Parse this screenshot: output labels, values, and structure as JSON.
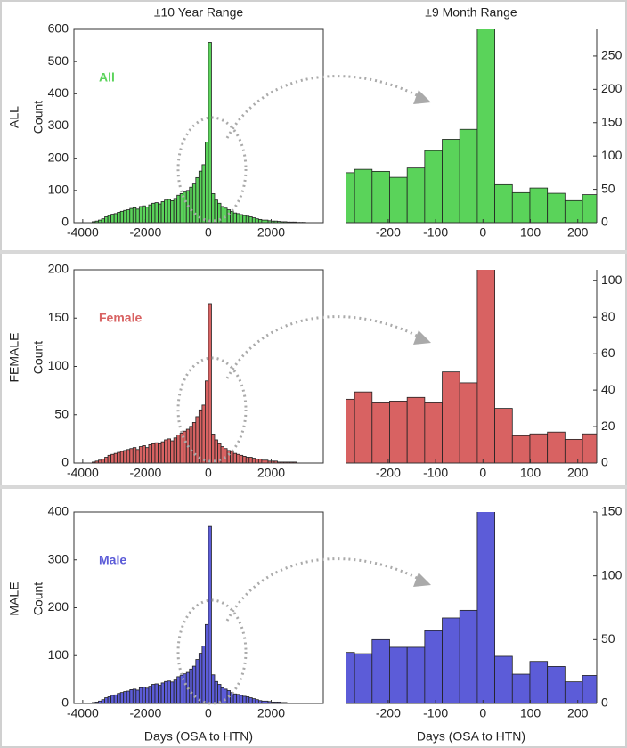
{
  "chart_data": [
    {
      "type": "histogram",
      "title": "±10 Year Range",
      "row_label": "ALL",
      "ylabel": "Count",
      "annotation": "All",
      "color": "#5ad35a",
      "edgecolor": "#222",
      "yaxis_side": "left",
      "bins": [
        -3700,
        -3600,
        -3500,
        -3400,
        -3300,
        -3200,
        -3100,
        -3000,
        -2900,
        -2800,
        -2700,
        -2600,
        -2500,
        -2400,
        -2300,
        -2200,
        -2100,
        -2000,
        -1900,
        -1800,
        -1700,
        -1600,
        -1500,
        -1400,
        -1300,
        -1200,
        -1100,
        -1000,
        -900,
        -800,
        -700,
        -600,
        -500,
        -400,
        -300,
        -200,
        -100,
        0,
        100,
        200,
        300,
        400,
        500,
        600,
        700,
        800,
        900,
        1000,
        1100,
        1200,
        1300,
        1400,
        1500,
        1600,
        1700,
        1800,
        1900,
        2000,
        2100,
        2200,
        2300,
        2400,
        2500,
        2600,
        2700,
        2800,
        2900,
        3000,
        3100,
        3200,
        3300
      ],
      "values": [
        3,
        5,
        8,
        12,
        18,
        22,
        26,
        28,
        32,
        35,
        38,
        40,
        44,
        46,
        42,
        50,
        52,
        48,
        55,
        60,
        62,
        58,
        65,
        70,
        72,
        68,
        75,
        85,
        90,
        95,
        100,
        110,
        120,
        140,
        160,
        180,
        250,
        560,
        90,
        70,
        60,
        50,
        45,
        40,
        35,
        30,
        28,
        25,
        22,
        20,
        18,
        15,
        12,
        10,
        8,
        8,
        6,
        5,
        5,
        4,
        3,
        3,
        2,
        2,
        2,
        1,
        1,
        1,
        0,
        0
      ],
      "xlim": [
        -4280,
        3660
      ],
      "ylim": [
        0,
        600
      ],
      "xticks": [
        -4000,
        -2000,
        0,
        2000
      ],
      "yticks": [
        0,
        100,
        200,
        300,
        400,
        500,
        600
      ]
    },
    {
      "type": "histogram",
      "title": "±9 Month Range",
      "color": "#5ad35a",
      "edgecolor": "#222",
      "yaxis_side": "right",
      "bins": [
        -308,
        -271,
        -234,
        -197,
        -160,
        -123,
        -86,
        -49,
        -12,
        25,
        62,
        99,
        136,
        173,
        210,
        247
      ],
      "values": [
        75,
        80,
        77,
        68,
        82,
        108,
        125,
        140,
        320,
        57,
        45,
        52,
        44,
        33,
        42
      ],
      "xlim": [
        -290,
        240
      ],
      "ylim": [
        0,
        290
      ],
      "xticks": [
        -200,
        -100,
        0,
        100,
        200
      ],
      "yticks": [
        0,
        50,
        100,
        150,
        200,
        250
      ]
    },
    {
      "type": "histogram",
      "row_label": "FEMALE",
      "ylabel": "Count",
      "annotation": "Female",
      "color": "#d86262",
      "edgecolor": "#222",
      "yaxis_side": "left",
      "bins": [
        -3700,
        -3600,
        -3500,
        -3400,
        -3300,
        -3200,
        -3100,
        -3000,
        -2900,
        -2800,
        -2700,
        -2600,
        -2500,
        -2400,
        -2300,
        -2200,
        -2100,
        -2000,
        -1900,
        -1800,
        -1700,
        -1600,
        -1500,
        -1400,
        -1300,
        -1200,
        -1100,
        -1000,
        -900,
        -800,
        -700,
        -600,
        -500,
        -400,
        -300,
        -200,
        -100,
        0,
        100,
        200,
        300,
        400,
        500,
        600,
        700,
        800,
        900,
        1000,
        1100,
        1200,
        1300,
        1400,
        1500,
        1600,
        1700,
        1800,
        1900,
        2000,
        2100,
        2200,
        2300,
        2400,
        2500,
        2600,
        2700,
        2800,
        2900,
        3000,
        3100,
        3200,
        3300
      ],
      "values": [
        1,
        2,
        3,
        4,
        6,
        8,
        9,
        10,
        11,
        12,
        13,
        14,
        15,
        16,
        14,
        17,
        18,
        16,
        19,
        20,
        21,
        20,
        22,
        24,
        25,
        23,
        26,
        29,
        31,
        33,
        35,
        38,
        42,
        48,
        55,
        60,
        85,
        165,
        30,
        24,
        20,
        17,
        15,
        13,
        12,
        10,
        9,
        8,
        7,
        6,
        6,
        5,
        4,
        4,
        3,
        3,
        2,
        2,
        2,
        1,
        1,
        1,
        1,
        1,
        1,
        0,
        0,
        0,
        0,
        0
      ],
      "xlim": [
        -4280,
        3660
      ],
      "ylim": [
        0,
        200
      ],
      "xticks": [
        -4000,
        -2000,
        0,
        2000
      ],
      "yticks": [
        0,
        50,
        100,
        150,
        200
      ]
    },
    {
      "type": "histogram",
      "color": "#d86262",
      "edgecolor": "#222",
      "yaxis_side": "right",
      "bins": [
        -308,
        -271,
        -234,
        -197,
        -160,
        -123,
        -86,
        -49,
        -12,
        25,
        62,
        99,
        136,
        173,
        210,
        247
      ],
      "values": [
        35,
        39,
        33,
        34,
        36,
        33,
        50,
        44,
        120,
        30,
        15,
        16,
        17,
        13,
        16
      ],
      "xlim": [
        -290,
        240
      ],
      "ylim": [
        0,
        106
      ],
      "xticks": [
        -200,
        -100,
        0,
        100,
        200
      ],
      "yticks": [
        0,
        20,
        40,
        60,
        80,
        100
      ]
    },
    {
      "type": "histogram",
      "row_label": "MALE",
      "ylabel": "Count",
      "annotation": "Male",
      "xlabel": "Days (OSA to HTN)",
      "color": "#5c5cd8",
      "edgecolor": "#222",
      "yaxis_side": "left",
      "bins": [
        -3700,
        -3600,
        -3500,
        -3400,
        -3300,
        -3200,
        -3100,
        -3000,
        -2900,
        -2800,
        -2700,
        -2600,
        -2500,
        -2400,
        -2300,
        -2200,
        -2100,
        -2000,
        -1900,
        -1800,
        -1700,
        -1600,
        -1500,
        -1400,
        -1300,
        -1200,
        -1100,
        -1000,
        -900,
        -800,
        -700,
        -600,
        -500,
        -400,
        -300,
        -200,
        -100,
        0,
        100,
        200,
        300,
        400,
        500,
        600,
        700,
        800,
        900,
        1000,
        1100,
        1200,
        1300,
        1400,
        1500,
        1600,
        1700,
        1800,
        1900,
        2000,
        2100,
        2200,
        2300,
        2400,
        2500,
        2600,
        2700,
        2800,
        2900,
        3000,
        3100,
        3200,
        3300
      ],
      "values": [
        2,
        3,
        5,
        8,
        12,
        14,
        17,
        18,
        21,
        23,
        25,
        26,
        29,
        30,
        28,
        33,
        34,
        32,
        36,
        40,
        41,
        38,
        43,
        46,
        47,
        45,
        49,
        56,
        59,
        62,
        65,
        72,
        78,
        92,
        105,
        120,
        165,
        370,
        60,
        46,
        40,
        33,
        30,
        27,
        23,
        20,
        19,
        17,
        15,
        14,
        12,
        10,
        8,
        6,
        5,
        5,
        4,
        3,
        3,
        3,
        2,
        2,
        1,
        1,
        1,
        1,
        1,
        1,
        0,
        0
      ],
      "xlim": [
        -4280,
        3660
      ],
      "ylim": [
        0,
        400
      ],
      "xticks": [
        -4000,
        -2000,
        0,
        2000
      ],
      "yticks": [
        0,
        100,
        200,
        300,
        400
      ]
    },
    {
      "type": "histogram",
      "xlabel": "Days (OSA to HTN)",
      "color": "#5c5cd8",
      "edgecolor": "#222",
      "yaxis_side": "right",
      "bins": [
        -308,
        -271,
        -234,
        -197,
        -160,
        -123,
        -86,
        -49,
        -12,
        25,
        62,
        99,
        136,
        173,
        210,
        247
      ],
      "values": [
        40,
        39,
        50,
        44,
        44,
        57,
        67,
        73,
        170,
        37,
        23,
        33,
        29,
        17,
        22
      ],
      "xlim": [
        -290,
        240
      ],
      "ylim": [
        0,
        150
      ],
      "xticks": [
        -200,
        -100,
        0,
        100,
        200
      ],
      "yticks": [
        0,
        50,
        100,
        150
      ]
    }
  ]
}
